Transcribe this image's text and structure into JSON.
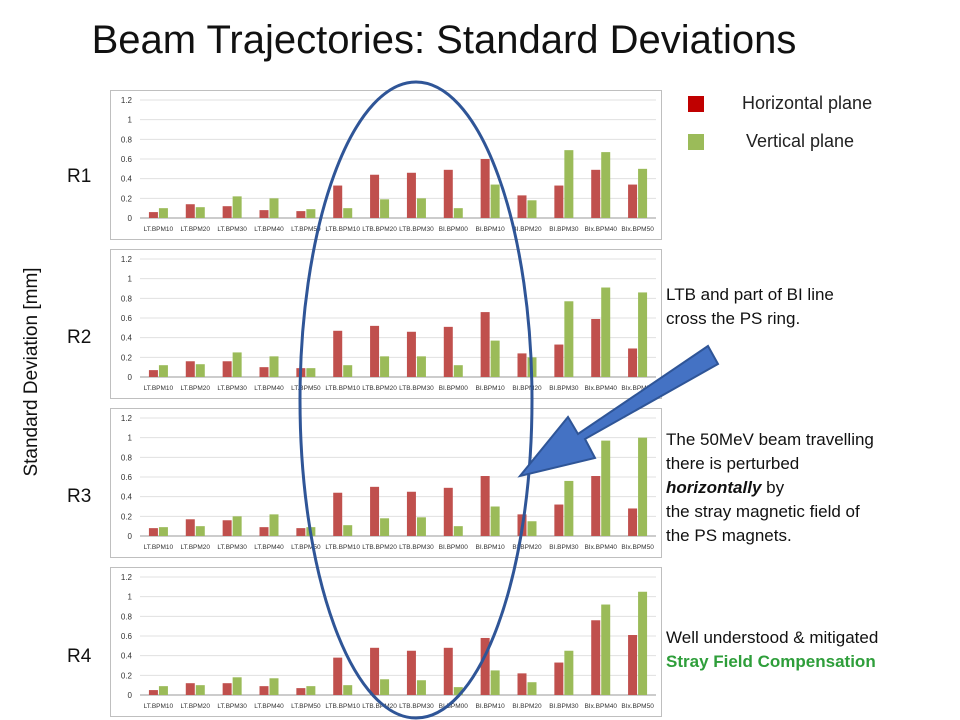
{
  "title": "Beam Trajectories: Standard Deviations",
  "legend": {
    "horizontal": {
      "label": "Horizontal plane",
      "color": "#c0504d"
    },
    "vertical": {
      "label": "Vertical plane",
      "color": "#9bbb59"
    }
  },
  "y_axis_title": "Standard Deviation  [mm]",
  "notes": {
    "cross_line1": "LTB and part of BI line",
    "cross_line2": "cross the PS ring.",
    "beam_line1": "The 50MeV beam travelling",
    "beam_line2": "there is perturbed",
    "beam_line3_em": "horizontally",
    "beam_line3_rest": " by",
    "beam_line4": "the stray magnetic field of",
    "beam_line5": "the PS magnets.",
    "mitigated": "Well understood & mitigated",
    "compensation": "Stray Field Compensation"
  },
  "chart_data": [
    {
      "type": "bar",
      "name": "R1",
      "categories": [
        "LT.BPM10",
        "LT.BPM20",
        "LT.BPM30",
        "LT.BPM40",
        "LT.BPM50",
        "LTB.BPM10",
        "LTB.BPM20",
        "LTB.BPM30",
        "BI.BPM00",
        "BI.BPM10",
        "BI.BPM20",
        "BI.BPM30",
        "BIx.BPM40",
        "BIx.BPM50"
      ],
      "yticks": [
        "0",
        "0.2",
        "0.4",
        "0.6",
        "0.8",
        "1",
        "1.2"
      ],
      "ylim": [
        0,
        1.2
      ],
      "series": [
        {
          "values": [
            0.06,
            0.14,
            0.12,
            0.08,
            0.07,
            0.33,
            0.44,
            0.46,
            0.49,
            0.6,
            0.23,
            0.33,
            0.49,
            0.34
          ]
        },
        {
          "values": [
            0.1,
            0.11,
            0.22,
            0.2,
            0.09,
            0.1,
            0.19,
            0.2,
            0.1,
            0.34,
            0.18,
            0.69,
            0.67,
            0.5
          ]
        }
      ]
    },
    {
      "type": "bar",
      "name": "R2",
      "categories": [
        "LT.BPM10",
        "LT.BPM20",
        "LT.BPM30",
        "LT.BPM40",
        "LT.BPM50",
        "LTB.BPM10",
        "LTB.BPM20",
        "LTB.BPM30",
        "BI.BPM00",
        "BI.BPM10",
        "BI.BPM20",
        "BI.BPM30",
        "BIx.BPM40",
        "BIx.BPM50"
      ],
      "yticks": [
        "0",
        "0.2",
        "0.4",
        "0.6",
        "0.8",
        "1",
        "1.2"
      ],
      "ylim": [
        0,
        1.2
      ],
      "series": [
        {
          "values": [
            0.07,
            0.16,
            0.16,
            0.1,
            0.09,
            0.47,
            0.52,
            0.46,
            0.51,
            0.66,
            0.24,
            0.33,
            0.59,
            0.29
          ]
        },
        {
          "values": [
            0.12,
            0.13,
            0.25,
            0.21,
            0.09,
            0.12,
            0.21,
            0.21,
            0.12,
            0.37,
            0.2,
            0.77,
            0.91,
            0.86
          ]
        }
      ]
    },
    {
      "type": "bar",
      "name": "R3",
      "categories": [
        "LT.BPM10",
        "LT.BPM20",
        "LT.BPM30",
        "LT.BPM40",
        "LT.BPM50",
        "LTB.BPM10",
        "LTB.BPM20",
        "LTB.BPM30",
        "BI.BPM00",
        "BI.BPM10",
        "BI.BPM20",
        "BI.BPM30",
        "BIx.BPM40",
        "BIx.BPM50"
      ],
      "yticks": [
        "0",
        "0.2",
        "0.4",
        "0.6",
        "0.8",
        "1",
        "1.2"
      ],
      "ylim": [
        0,
        1.2
      ],
      "series": [
        {
          "values": [
            0.08,
            0.17,
            0.16,
            0.09,
            0.08,
            0.44,
            0.5,
            0.45,
            0.49,
            0.61,
            0.22,
            0.32,
            0.61,
            0.28
          ]
        },
        {
          "values": [
            0.09,
            0.1,
            0.2,
            0.22,
            0.09,
            0.11,
            0.18,
            0.19,
            0.1,
            0.3,
            0.15,
            0.56,
            0.97,
            1.0
          ]
        }
      ]
    },
    {
      "type": "bar",
      "name": "R4",
      "categories": [
        "LT.BPM10",
        "LT.BPM20",
        "LT.BPM30",
        "LT.BPM40",
        "LT.BPM50",
        "LTB.BPM10",
        "LTB.BPM20",
        "LTB.BPM30",
        "BI.BPM00",
        "BI.BPM10",
        "BI.BPM20",
        "BI.BPM30",
        "BIx.BPM40",
        "BIx.BPM50"
      ],
      "yticks": [
        "0",
        "0.2",
        "0.4",
        "0.6",
        "0.8",
        "1",
        "1.2"
      ],
      "ylim": [
        0,
        1.2
      ],
      "series": [
        {
          "values": [
            0.05,
            0.12,
            0.12,
            0.09,
            0.07,
            0.38,
            0.48,
            0.45,
            0.48,
            0.58,
            0.22,
            0.33,
            0.76,
            0.61
          ]
        },
        {
          "values": [
            0.09,
            0.1,
            0.18,
            0.17,
            0.09,
            0.1,
            0.16,
            0.15,
            0.08,
            0.25,
            0.13,
            0.45,
            0.92,
            1.05
          ]
        }
      ]
    }
  ]
}
